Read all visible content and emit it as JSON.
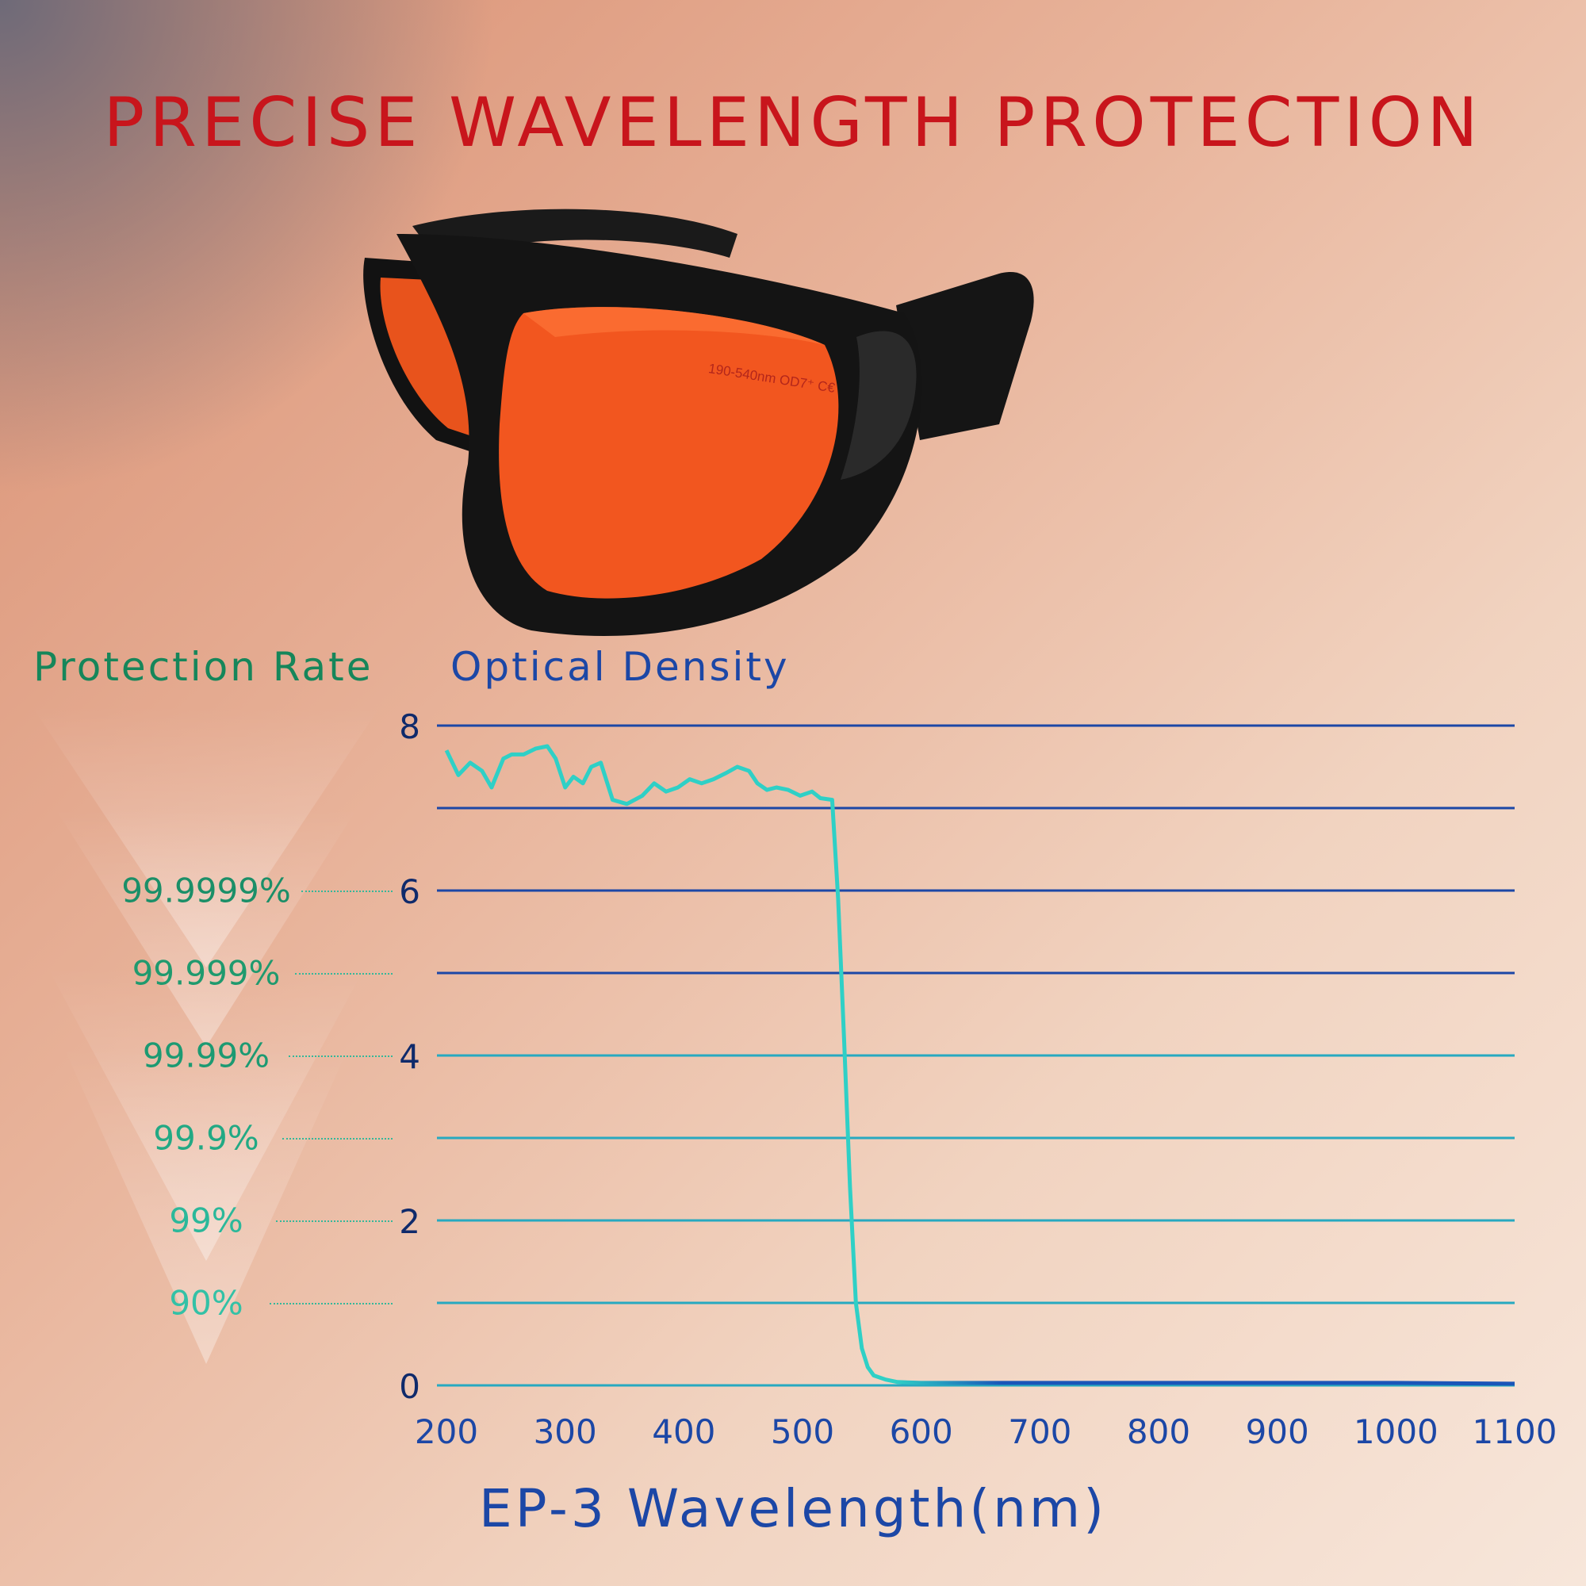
{
  "title": "PRECISE WAVELENGTH PROTECTION",
  "product": {
    "name": "orange laser safety glasses",
    "lens_marking": "190-540nm OD7⁺ C€",
    "frame_color": "#141414",
    "lens_color": "#f2561f"
  },
  "protection_rate": {
    "heading": "Protection Rate",
    "levels": [
      {
        "label": "99.9999%",
        "od": 6
      },
      {
        "label": "99.999%",
        "od": 5
      },
      {
        "label": "99.99%",
        "od": 4
      },
      {
        "label": "99.9%",
        "od": 3
      },
      {
        "label": "99%",
        "od": 2
      },
      {
        "label": "90%",
        "od": 1
      }
    ]
  },
  "colors": {
    "title": "#c8151c",
    "protection_rate": "#16865a",
    "optical_density": "#1c47a6",
    "curve_start": "#2fd0c6",
    "curve_end": "#1a55b8"
  },
  "chart_data": {
    "type": "line",
    "title": "PRECISE WAVELENGTH PROTECTION",
    "ylabel": "Optical Density",
    "xlabel": "EP-3 Wavelength(nm)",
    "xlim": [
      200,
      1100
    ],
    "ylim": [
      0,
      8
    ],
    "x_ticks": [
      200,
      300,
      400,
      500,
      600,
      700,
      800,
      900,
      1000,
      1100
    ],
    "y_ticks": [
      0,
      2,
      4,
      6,
      8
    ],
    "grid": true,
    "grid_x_step": 50,
    "grid_y_step": 1,
    "series": [
      {
        "x": [
          200,
          210,
          220,
          230,
          238,
          248,
          255,
          265,
          275,
          285,
          292,
          300,
          307,
          315,
          322,
          330,
          340,
          352,
          365,
          375,
          385,
          395,
          405,
          415,
          425,
          435,
          445,
          455,
          462,
          470,
          478,
          488,
          498,
          508,
          515,
          525,
          530,
          535,
          540,
          545,
          550,
          555,
          560,
          570,
          580,
          600,
          650,
          700,
          800,
          900,
          1000,
          1100
        ],
        "y": [
          7.7,
          7.4,
          7.55,
          7.45,
          7.25,
          7.6,
          7.65,
          7.65,
          7.72,
          7.75,
          7.6,
          7.25,
          7.38,
          7.3,
          7.5,
          7.55,
          7.1,
          7.05,
          7.15,
          7.3,
          7.2,
          7.25,
          7.35,
          7.3,
          7.35,
          7.42,
          7.5,
          7.45,
          7.3,
          7.22,
          7.25,
          7.22,
          7.15,
          7.2,
          7.12,
          7.1,
          5.9,
          4.2,
          2.4,
          1.0,
          0.45,
          0.22,
          0.12,
          0.07,
          0.04,
          0.03,
          0.03,
          0.03,
          0.03,
          0.03,
          0.03,
          0.02
        ]
      }
    ]
  }
}
